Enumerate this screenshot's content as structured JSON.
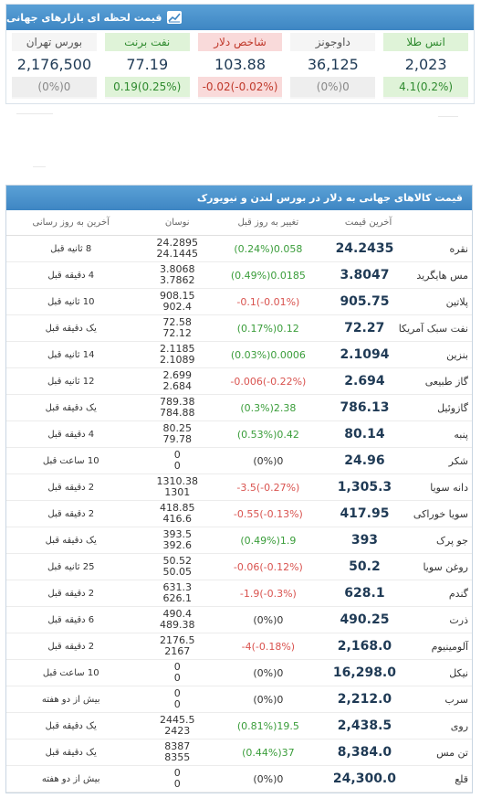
{
  "top": {
    "title": "قیمت لحظه ای بازارهای جهانی",
    "tiles": [
      {
        "name": "انس طلا",
        "value": "2,023",
        "change": "4.1(0.2%)",
        "trend": "up"
      },
      {
        "name": "داوجونز",
        "value": "36,125",
        "change": "(0%)0",
        "trend": "flat"
      },
      {
        "name": "شاخص دلار",
        "value": "103.88",
        "change": "-0.02(-0.02%)",
        "trend": "down"
      },
      {
        "name": "نفت برنت",
        "value": "77.19",
        "change": "0.19(0.25%)",
        "trend": "up"
      },
      {
        "name": "بورس تهران",
        "value": "2,176,500",
        "change": "(0%)0",
        "trend": "flat"
      }
    ]
  },
  "table": {
    "title": "قیمت کالاهای جهانی به دلار در بورس لندن و نیویورک",
    "columns": {
      "price": "آخرین قیمت",
      "change": "تغییر به روز قبل",
      "range": "نوسان",
      "time": "آخرین به روز رسانی"
    },
    "rows": [
      {
        "name": "نقره",
        "price": "24.2435",
        "change": "(0.24%)0.058",
        "trend": "up",
        "high": "24.2895",
        "low": "24.1445",
        "time": "8 ثانیه قبل"
      },
      {
        "name": "مس هایگرید",
        "price": "3.8047",
        "change": "(0.49%)0.0185",
        "trend": "up",
        "high": "3.8068",
        "low": "3.7862",
        "time": "4 دقیقه قبل"
      },
      {
        "name": "پلاتین",
        "price": "905.75",
        "change": "-0.1(-0.01%)",
        "trend": "down",
        "high": "908.15",
        "low": "902.4",
        "time": "10 ثانیه قبل"
      },
      {
        "name": "نفت سبک آمریکا",
        "price": "72.27",
        "change": "(0.17%)0.12",
        "trend": "up",
        "high": "72.58",
        "low": "72.12",
        "time": "یک دقیقه قبل"
      },
      {
        "name": "بنزین",
        "price": "2.1094",
        "change": "(0.03%)0.0006",
        "trend": "up",
        "high": "2.1185",
        "low": "2.1089",
        "time": "14 ثانیه قبل"
      },
      {
        "name": "گاز طبیعی",
        "price": "2.694",
        "change": "-0.006(-0.22%)",
        "trend": "down",
        "high": "2.699",
        "low": "2.684",
        "time": "12 ثانیه قبل"
      },
      {
        "name": "گازوئیل",
        "price": "786.13",
        "change": "(0.3%)2.38",
        "trend": "up",
        "high": "789.38",
        "low": "784.88",
        "time": "یک دقیقه قبل"
      },
      {
        "name": "پنبه",
        "price": "80.14",
        "change": "(0.53%)0.42",
        "trend": "up",
        "high": "80.25",
        "low": "79.78",
        "time": "4 دقیقه قبل"
      },
      {
        "name": "شکر",
        "price": "24.96",
        "change": "(0%)0",
        "trend": "flat",
        "high": "0",
        "low": "0",
        "time": "10 ساعت قبل"
      },
      {
        "name": "دانه سویا",
        "price": "1,305.3",
        "change": "-3.5(-0.27%)",
        "trend": "down",
        "high": "1310.38",
        "low": "1301",
        "time": "2 دقیقه قبل"
      },
      {
        "name": "سویا خوراکی",
        "price": "417.95",
        "change": "-0.55(-0.13%)",
        "trend": "down",
        "high": "418.85",
        "low": "416.6",
        "time": "2 دقیقه قبل"
      },
      {
        "name": "جو پرک",
        "price": "393",
        "change": "(0.49%)1.9",
        "trend": "up",
        "high": "393.5",
        "low": "392.6",
        "time": "یک دقیقه قبل"
      },
      {
        "name": "روغن سویا",
        "price": "50.2",
        "change": "-0.06(-0.12%)",
        "trend": "down",
        "high": "50.52",
        "low": "50.05",
        "time": "25 ثانیه قبل"
      },
      {
        "name": "گندم",
        "price": "628.1",
        "change": "-1.9(-0.3%)",
        "trend": "down",
        "high": "631.3",
        "low": "626.1",
        "time": "2 دقیقه قبل"
      },
      {
        "name": "ذرت",
        "price": "490.25",
        "change": "(0%)0",
        "trend": "flat",
        "high": "490.4",
        "low": "489.38",
        "time": "6 دقیقه قبل"
      },
      {
        "name": "آلومینیوم",
        "price": "2,168.0",
        "change": "-4(-0.18%)",
        "trend": "down",
        "high": "2176.5",
        "low": "2167",
        "time": "2 دقیقه قبل"
      },
      {
        "name": "نیکل",
        "price": "16,298.0",
        "change": "(0%)0",
        "trend": "flat",
        "high": "0",
        "low": "0",
        "time": "10 ساعت قبل"
      },
      {
        "name": "سرب",
        "price": "2,212.0",
        "change": "(0%)0",
        "trend": "flat",
        "high": "0",
        "low": "0",
        "time": "بیش از دو هفته"
      },
      {
        "name": "روی",
        "price": "2,438.5",
        "change": "(0.81%)19.5",
        "trend": "up",
        "high": "2445.5",
        "low": "2423",
        "time": "یک دقیقه قبل"
      },
      {
        "name": "تن مس",
        "price": "8,384.0",
        "change": "(0.44%)37",
        "trend": "up",
        "high": "8387",
        "low": "8355",
        "time": "یک دقیقه قبل"
      },
      {
        "name": "قلع",
        "price": "24,300.0",
        "change": "(0%)0",
        "trend": "flat",
        "high": "0",
        "low": "0",
        "time": "بیش از دو هفته"
      }
    ]
  },
  "colors": {
    "header": "#3e86c3",
    "up": "#3a9d3a",
    "down": "#d9534f",
    "price": "#1f3a55"
  },
  "icons": {
    "header_icon": "line-chart-icon"
  }
}
